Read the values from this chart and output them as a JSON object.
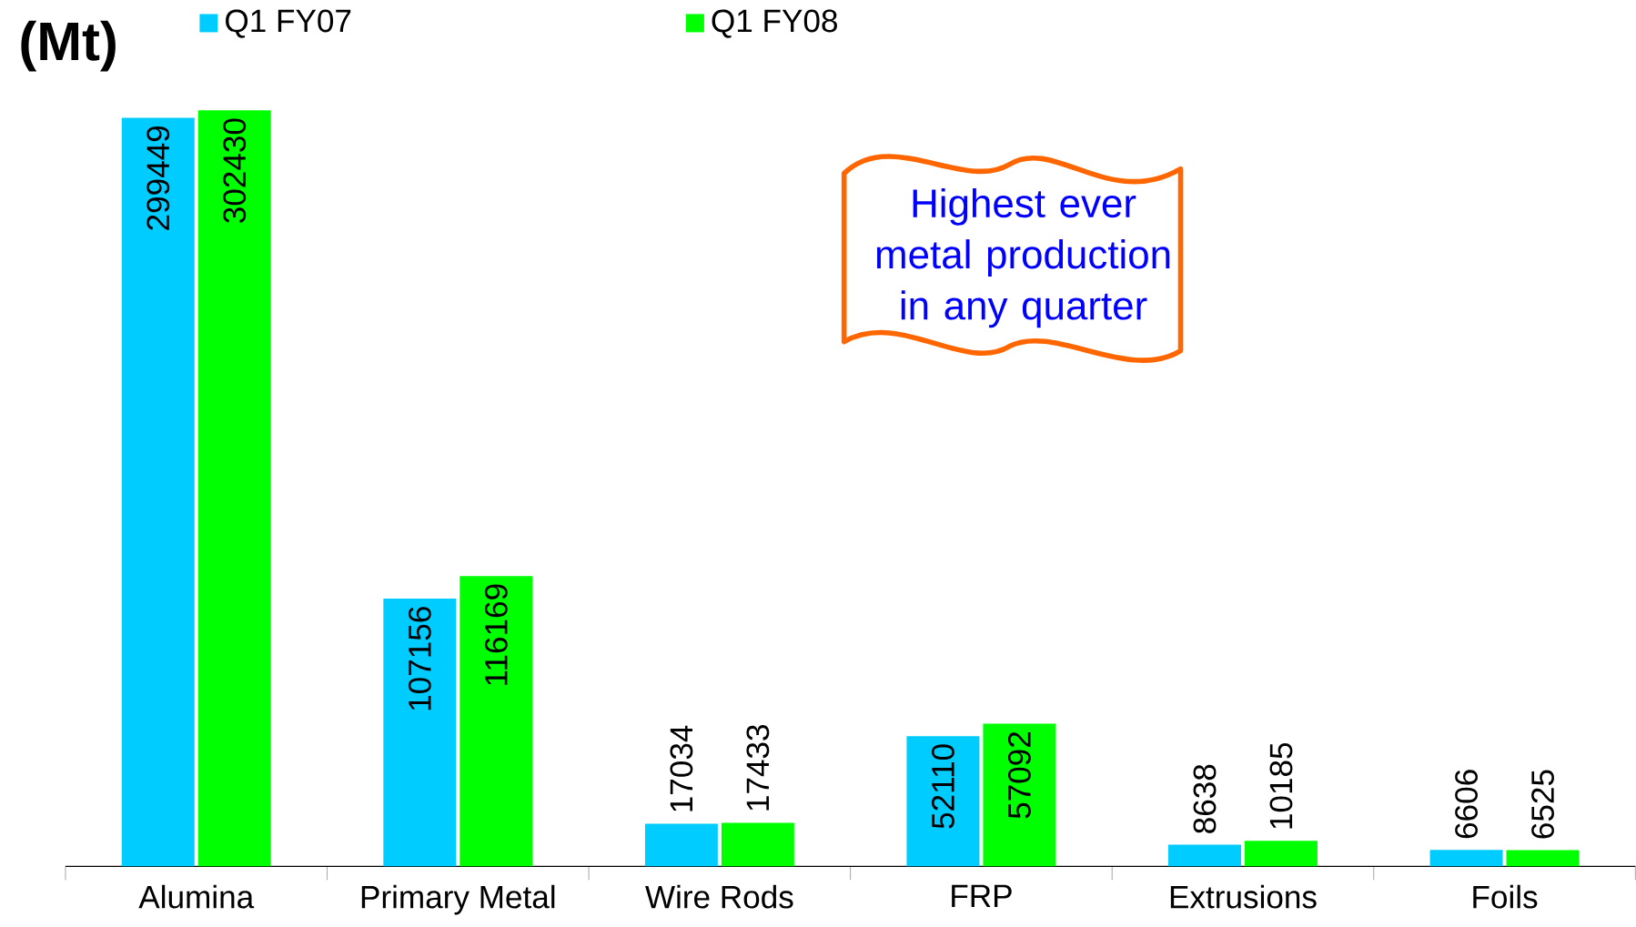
{
  "chart_data": {
    "type": "bar",
    "ylabel": "(Mt)",
    "categories": [
      "Alumina",
      "Primary Metal",
      "Wire Rods",
      "FRP",
      "Extrusions",
      "Foils"
    ],
    "series": [
      {
        "name": "Q1 FY07",
        "color": "#00ccff",
        "values": [
          299449,
          107156,
          17034,
          52110,
          8638,
          6606
        ]
      },
      {
        "name": "Q1 FY08",
        "color": "#00ff00",
        "values": [
          302430,
          116169,
          17433,
          57092,
          10185,
          6525
        ]
      }
    ],
    "data_labels": true,
    "legend": "top",
    "annotations": [
      "Highest ever metal production in any quarter"
    ]
  }
}
